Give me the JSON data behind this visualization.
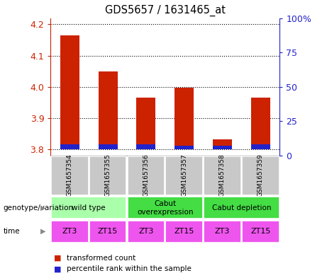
{
  "title": "GDS5657 / 1631465_at",
  "samples": [
    "GSM1657354",
    "GSM1657355",
    "GSM1657356",
    "GSM1657357",
    "GSM1657358",
    "GSM1657359"
  ],
  "transformed_counts": [
    4.165,
    4.05,
    3.965,
    3.998,
    3.832,
    3.965
  ],
  "percentile_ranks_pct": [
    3.5,
    3.5,
    3.5,
    2.5,
    2.5,
    3.5
  ],
  "baseline": 3.8,
  "ylim_left": [
    3.78,
    4.22
  ],
  "ylim_right": [
    0,
    100
  ],
  "yticks_left": [
    3.8,
    3.9,
    4.0,
    4.1,
    4.2
  ],
  "yticks_right": [
    0,
    25,
    50,
    75,
    100
  ],
  "bar_color": "#cc2200",
  "percentile_color": "#2222cc",
  "genotype_groups": [
    {
      "label": "wild type",
      "cols": [
        0,
        1
      ],
      "color": "#aaffaa"
    },
    {
      "label": "Cabut\noverexpression",
      "cols": [
        2,
        3
      ],
      "color": "#44dd44"
    },
    {
      "label": "Cabut depletion",
      "cols": [
        4,
        5
      ],
      "color": "#44dd44"
    }
  ],
  "time_labels": [
    "ZT3",
    "ZT15",
    "ZT3",
    "ZT15",
    "ZT3",
    "ZT15"
  ],
  "time_color": "#ee55ee",
  "sample_bg_color": "#c8c8c8",
  "left_axis_color": "#cc2200",
  "right_axis_color": "#2222cc",
  "legend_red_label": "transformed count",
  "legend_blue_label": "percentile rank within the sample",
  "bar_width": 0.5
}
